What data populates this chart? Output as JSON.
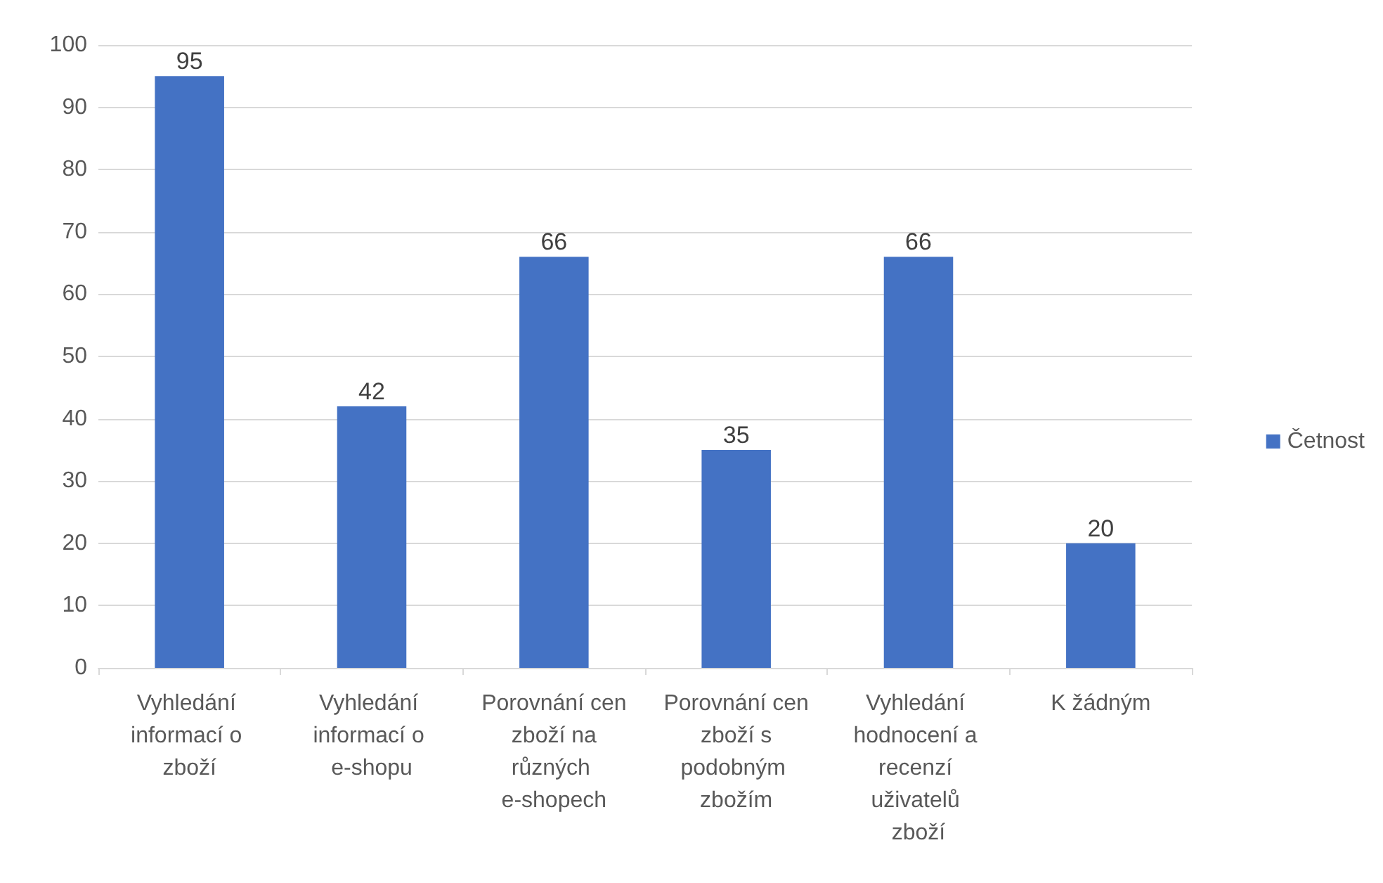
{
  "chart_data": {
    "type": "bar",
    "categories": [
      "Vyhledání informací o zboží",
      "Vyhledání informací o e-shopu",
      "Porovnání cen zboží na různých e-shopech",
      "Porovnání cen zboží s podobným zbožím",
      "Vyhledání hodnocení a recenzí uživatelů zboží",
      "K žádným"
    ],
    "series": [
      {
        "name": "Četnost",
        "color": "#4472c4",
        "values": [
          95,
          42,
          66,
          35,
          66,
          20
        ]
      }
    ],
    "ylim": [
      0,
      100
    ],
    "yticks": [
      0,
      10,
      20,
      30,
      40,
      50,
      60,
      70,
      80,
      90,
      100
    ],
    "grid": "y",
    "legend": "right",
    "data_labels": true
  }
}
